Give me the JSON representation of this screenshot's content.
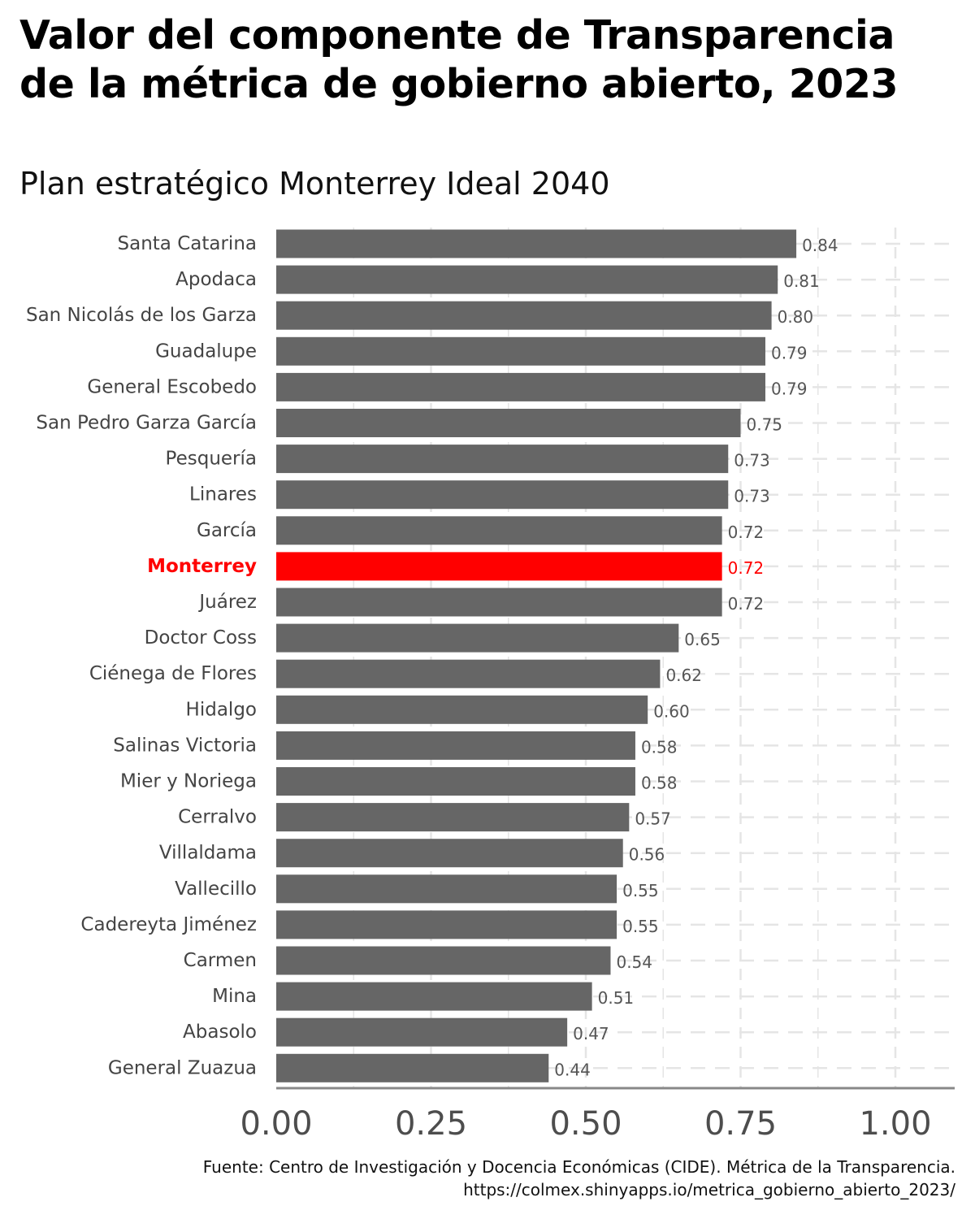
{
  "title": "Valor del componente de Transparencia de la métrica de gobierno abierto, 2023",
  "subtitle": "Plan estratégico Monterrey Ideal 2040",
  "caption": {
    "source": "Fuente: Centro de Investigación y Docencia Económicas (CIDE). Métrica de la Transparencia.",
    "url": "https://colmex.shinyapps.io/metrica_gobierno_abierto_2023/"
  },
  "chart_data": {
    "type": "bar",
    "orientation": "horizontal",
    "title": "Valor del componente de Transparencia de la métrica de gobierno abierto, 2023",
    "subtitle": "Plan estratégico Monterrey Ideal 2040",
    "xlabel": "",
    "ylabel": "",
    "xlim": [
      0,
      1.1
    ],
    "x_ticks": [
      "0.00",
      "0.25",
      "0.50",
      "0.75",
      "1.00"
    ],
    "grid": "vertical dashed",
    "highlight": "Monterrey",
    "colors": {
      "bar": "#666666",
      "highlight": "#ff0000",
      "label": "#555555",
      "grid": "#e5e5e5",
      "axis": "#888888"
    },
    "categories": [
      "Santa Catarina",
      "Apodaca",
      "San Nicolás de los Garza",
      "Guadalupe",
      "General Escobedo",
      "San Pedro Garza García",
      "Pesquería",
      "Linares",
      "García",
      "Monterrey",
      "Juárez",
      "Doctor Coss",
      "Ciénega de Flores",
      "Hidalgo",
      "Salinas Victoria",
      "Mier y Noriega",
      "Cerralvo",
      "Villaldama",
      "Vallecillo",
      "Cadereyta Jiménez",
      "Carmen",
      "Mina",
      "Abasolo",
      "General Zuazua"
    ],
    "values": [
      0.84,
      0.81,
      0.8,
      0.79,
      0.79,
      0.75,
      0.73,
      0.73,
      0.72,
      0.72,
      0.72,
      0.65,
      0.62,
      0.6,
      0.58,
      0.58,
      0.57,
      0.56,
      0.55,
      0.55,
      0.54,
      0.51,
      0.47,
      0.44
    ],
    "value_labels": [
      "0.84",
      "0.81",
      "0.80",
      "0.79",
      "0.79",
      "0.75",
      "0.73",
      "0.73",
      "0.72",
      "0.72",
      "0.72",
      "0.65",
      "0.62",
      "0.60",
      "0.58",
      "0.58",
      "0.57",
      "0.56",
      "0.55",
      "0.55",
      "0.54",
      "0.51",
      "0.47",
      "0.44"
    ]
  }
}
